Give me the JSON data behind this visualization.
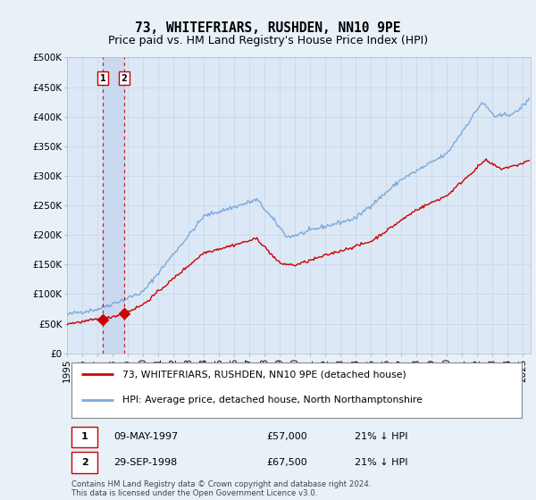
{
  "title": "73, WHITEFRIARS, RUSHDEN, NN10 9PE",
  "subtitle": "Price paid vs. HM Land Registry's House Price Index (HPI)",
  "background_color": "#e8f0f8",
  "plot_bg_color": "#dce8f5",
  "grid_color": "#c8d8e8",
  "red_line_color": "#cc0000",
  "blue_line_color": "#7aaadd",
  "shade_color": "#c8d8f0",
  "ylim": [
    0,
    500000
  ],
  "yticks": [
    0,
    50000,
    100000,
    150000,
    200000,
    250000,
    300000,
    350000,
    400000,
    450000,
    500000
  ],
  "ytick_labels": [
    "£0",
    "£50K",
    "£100K",
    "£150K",
    "£200K",
    "£250K",
    "£300K",
    "£350K",
    "£400K",
    "£450K",
    "£500K"
  ],
  "xlim_start": 1995.0,
  "xlim_end": 2025.5,
  "transactions": [
    {
      "label": "1",
      "date": "09-MAY-1997",
      "year": 1997.36,
      "price": 57000,
      "pct": "21%",
      "dir": "↓"
    },
    {
      "label": "2",
      "date": "29-SEP-1998",
      "year": 1998.75,
      "price": 67500,
      "pct": "21%",
      "dir": "↓"
    }
  ],
  "legend_line1": "73, WHITEFRIARS, RUSHDEN, NN10 9PE (detached house)",
  "legend_line2": "HPI: Average price, detached house, North Northamptonshire",
  "footer": "Contains HM Land Registry data © Crown copyright and database right 2024.\nThis data is licensed under the Open Government Licence v3.0.",
  "title_fontsize": 10.5,
  "subtitle_fontsize": 9,
  "tick_fontsize": 7.5
}
